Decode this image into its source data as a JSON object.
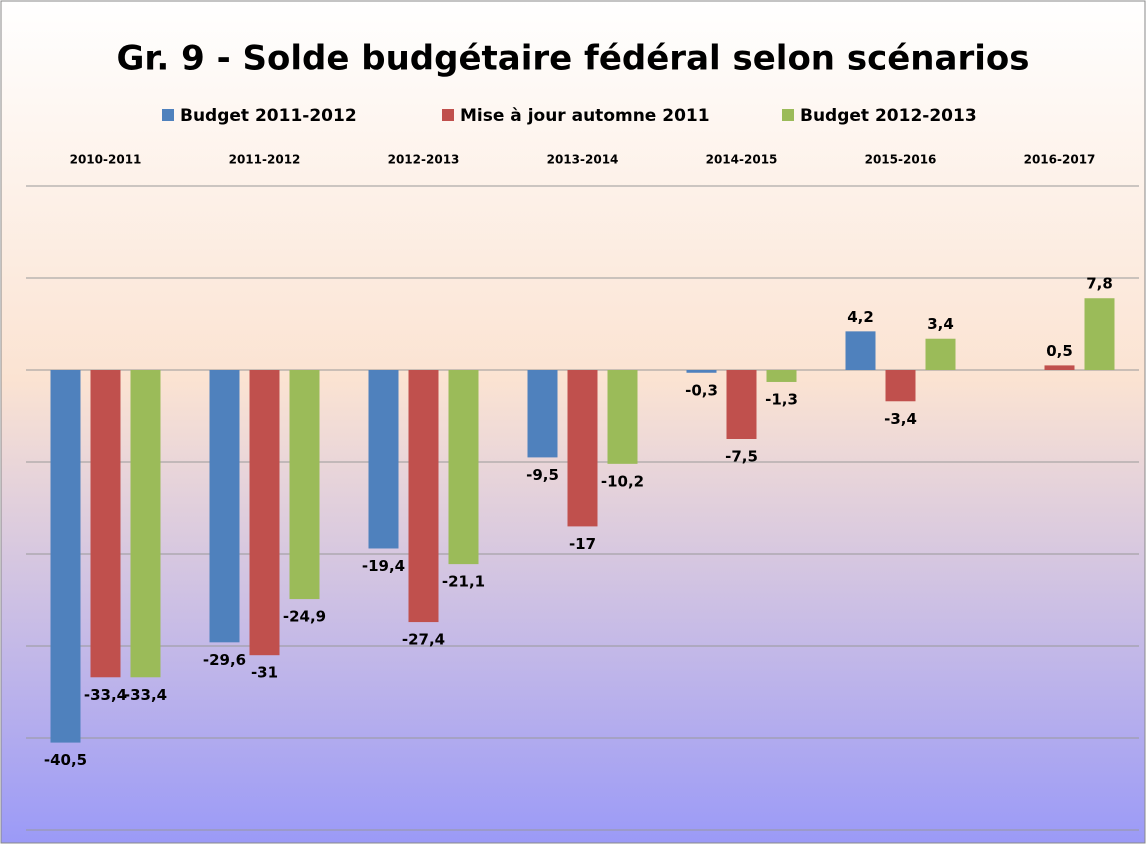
{
  "chart_data": {
    "type": "bar",
    "title": "Gr. 9 - Solde budgétaire fédéral selon scénarios",
    "categories": [
      "2010-2011",
      "2011-2012",
      "2012-2013",
      "2013-2014",
      "2014-2015",
      "2015-2016",
      "2016-2017"
    ],
    "series": [
      {
        "name": "Budget 2011-2012",
        "color": "#4f81bd",
        "values": [
          -40.5,
          -29.6,
          -19.4,
          -9.5,
          -0.3,
          4.2,
          null
        ],
        "value_labels": [
          "-40,5",
          "-29,6",
          "-19,4",
          "-9,5",
          "-0,3",
          "4,2",
          null
        ]
      },
      {
        "name": "Mise à jour automne 2011",
        "color": "#c0504d",
        "values": [
          -33.4,
          -31,
          -27.4,
          -17,
          -7.5,
          -3.4,
          0.5
        ],
        "value_labels": [
          "-33,4",
          "-31",
          "-27,4",
          "-17",
          "-7,5",
          "-3,4",
          "0,5"
        ]
      },
      {
        "name": "Budget 2012-2013",
        "color": "#9bbb59",
        "values": [
          -33.4,
          -24.9,
          -21.1,
          -10.2,
          -1.3,
          3.4,
          7.8
        ],
        "value_labels": [
          "-33,4",
          "-24,9",
          "-21,1",
          "-10,2",
          "-1,3",
          "3,4",
          "7,8"
        ]
      }
    ],
    "ylim": [
      -50,
      20
    ],
    "yticks": [
      -50,
      -40,
      -30,
      -20,
      -10,
      0,
      10,
      20
    ],
    "grid": true
  }
}
